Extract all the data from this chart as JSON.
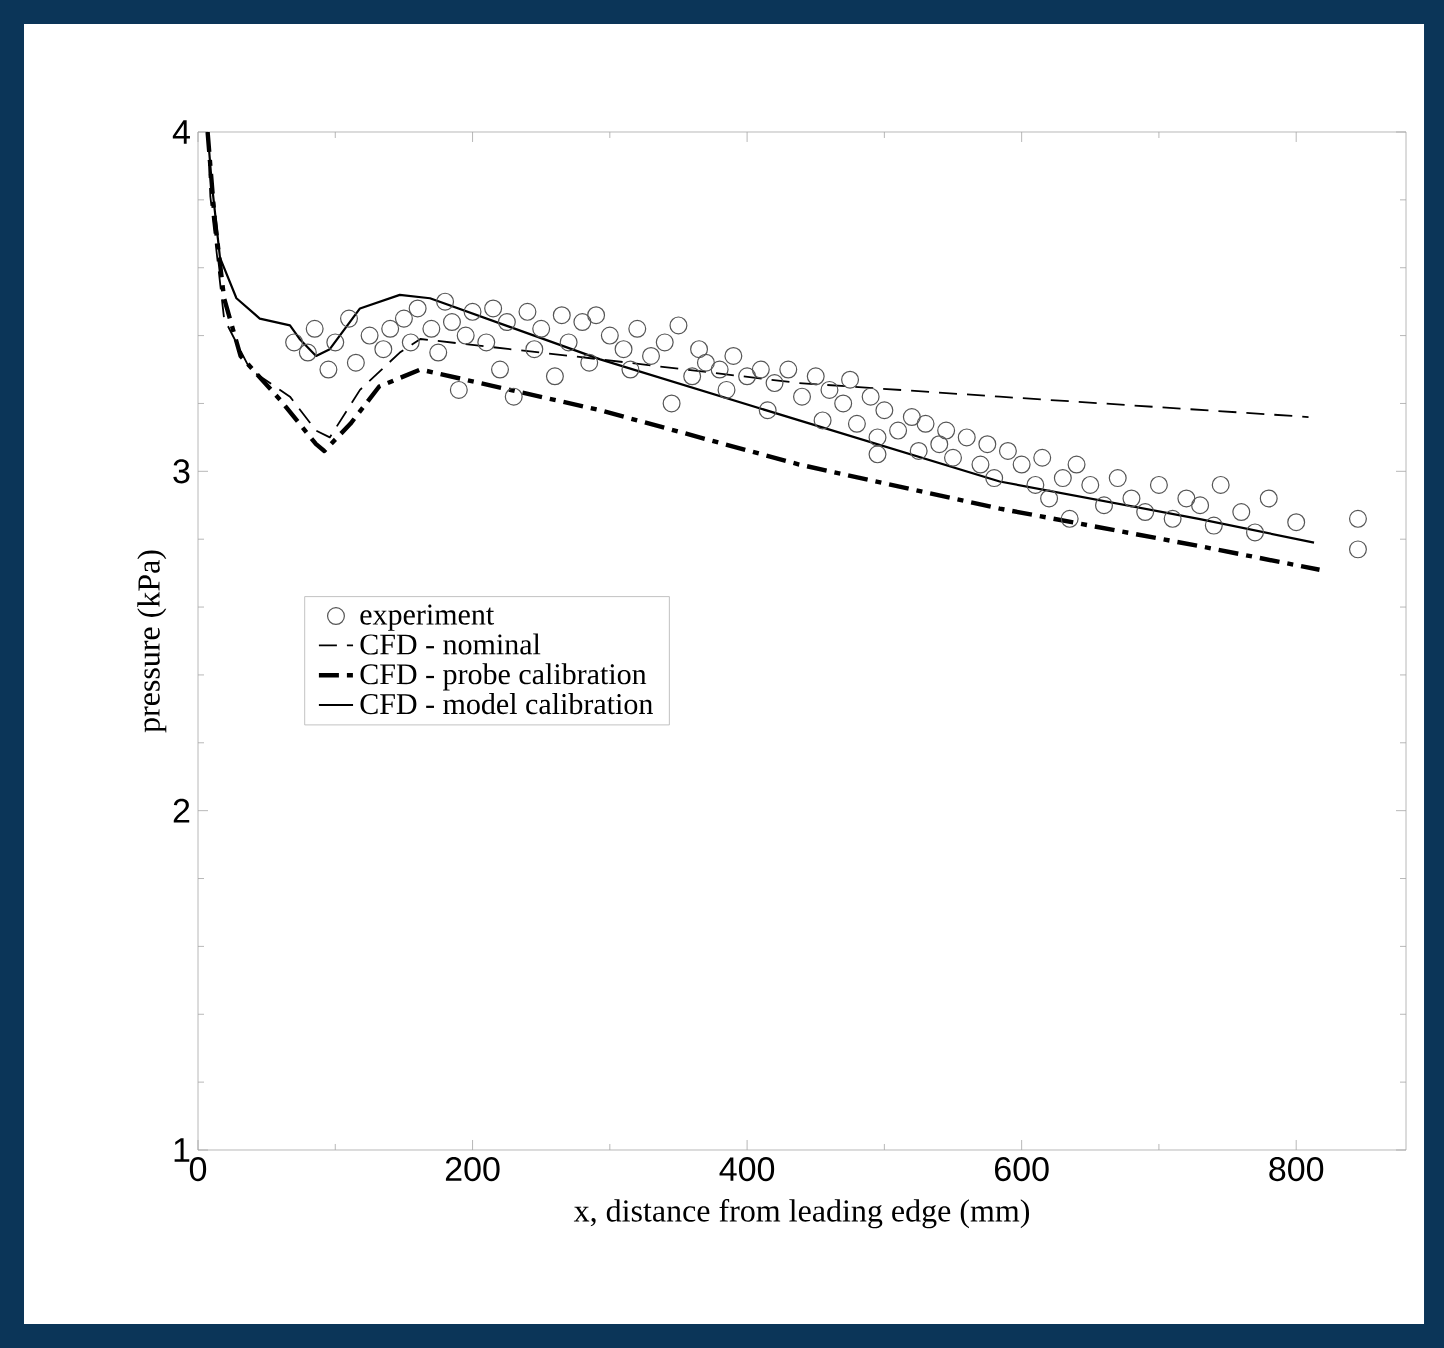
{
  "chart_data": {
    "type": "line",
    "xlabel": "x, distance from leading edge (mm)",
    "ylabel": "pressure (kPa)",
    "xlim": [
      0,
      880
    ],
    "ylim": [
      1,
      4
    ],
    "xticks": [
      0,
      200,
      400,
      600,
      800
    ],
    "yticks": [
      1,
      2,
      3,
      4
    ],
    "grid": false,
    "legend": "left",
    "series": [
      {
        "name": "experiment",
        "type": "scatter",
        "marker": "circle",
        "color": "#555555",
        "x": [
          70,
          80,
          85,
          95,
          100,
          110,
          115,
          125,
          135,
          140,
          150,
          155,
          160,
          170,
          175,
          180,
          185,
          190,
          195,
          200,
          210,
          215,
          220,
          225,
          230,
          240,
          245,
          250,
          260,
          265,
          270,
          280,
          285,
          290,
          300,
          310,
          315,
          320,
          330,
          340,
          345,
          350,
          360,
          365,
          370,
          380,
          385,
          390,
          400,
          410,
          415,
          420,
          430,
          440,
          450,
          455,
          460,
          470,
          475,
          480,
          490,
          495,
          495,
          500,
          510,
          520,
          525,
          530,
          540,
          545,
          550,
          560,
          570,
          575,
          580,
          590,
          600,
          610,
          615,
          620,
          630,
          635,
          640,
          650,
          660,
          670,
          680,
          690,
          700,
          710,
          720,
          730,
          740,
          745,
          760,
          770,
          780,
          800,
          845,
          845
        ],
        "values": [
          3.38,
          3.35,
          3.42,
          3.3,
          3.38,
          3.45,
          3.32,
          3.4,
          3.36,
          3.42,
          3.45,
          3.38,
          3.48,
          3.42,
          3.35,
          3.5,
          3.44,
          3.24,
          3.4,
          3.47,
          3.38,
          3.48,
          3.3,
          3.44,
          3.22,
          3.47,
          3.36,
          3.42,
          3.28,
          3.46,
          3.38,
          3.44,
          3.32,
          3.46,
          3.4,
          3.36,
          3.3,
          3.42,
          3.34,
          3.38,
          3.2,
          3.43,
          3.28,
          3.36,
          3.32,
          3.3,
          3.24,
          3.34,
          3.28,
          3.3,
          3.18,
          3.26,
          3.3,
          3.22,
          3.28,
          3.15,
          3.24,
          3.2,
          3.27,
          3.14,
          3.22,
          3.1,
          3.05,
          3.18,
          3.12,
          3.16,
          3.06,
          3.14,
          3.08,
          3.12,
          3.04,
          3.1,
          3.02,
          3.08,
          2.98,
          3.06,
          3.02,
          2.96,
          3.04,
          2.92,
          2.98,
          2.86,
          3.02,
          2.96,
          2.9,
          2.98,
          2.92,
          2.88,
          2.96,
          2.86,
          2.92,
          2.9,
          2.84,
          2.96,
          2.88,
          2.82,
          2.92,
          2.85,
          2.86,
          2.77
        ]
      },
      {
        "name": "CFD - nominal",
        "line_style": "dashed",
        "color": "#000000",
        "x": [
          7,
          9,
          19,
          38,
          67,
          86,
          96,
          118,
          147,
          162,
          293,
          438,
          584,
          809
        ],
        "values": [
          4.0,
          3.81,
          3.45,
          3.3,
          3.22,
          3.12,
          3.1,
          3.24,
          3.35,
          3.39,
          3.33,
          3.26,
          3.22,
          3.16
        ]
      },
      {
        "name": "CFD - probe calibration",
        "line_style": "dashdot",
        "color": "#000000",
        "x": [
          7,
          12,
          19,
          31,
          60,
          86,
          92,
          111,
          132,
          162,
          293,
          438,
          584,
          729,
          817
        ],
        "values": [
          4.0,
          3.75,
          3.51,
          3.34,
          3.21,
          3.08,
          3.06,
          3.14,
          3.25,
          3.3,
          3.18,
          3.02,
          2.89,
          2.78,
          2.71
        ]
      },
      {
        "name": "CFD - model calibration",
        "line_style": "solid",
        "color": "#000000",
        "x": [
          7,
          10,
          16,
          28,
          45,
          67,
          74,
          86,
          96,
          118,
          147,
          169,
          293,
          438,
          584,
          729,
          813
        ],
        "values": [
          4.0,
          3.85,
          3.63,
          3.51,
          3.45,
          3.43,
          3.39,
          3.34,
          3.36,
          3.48,
          3.52,
          3.51,
          3.33,
          3.15,
          2.97,
          2.86,
          2.79
        ]
      }
    ]
  }
}
